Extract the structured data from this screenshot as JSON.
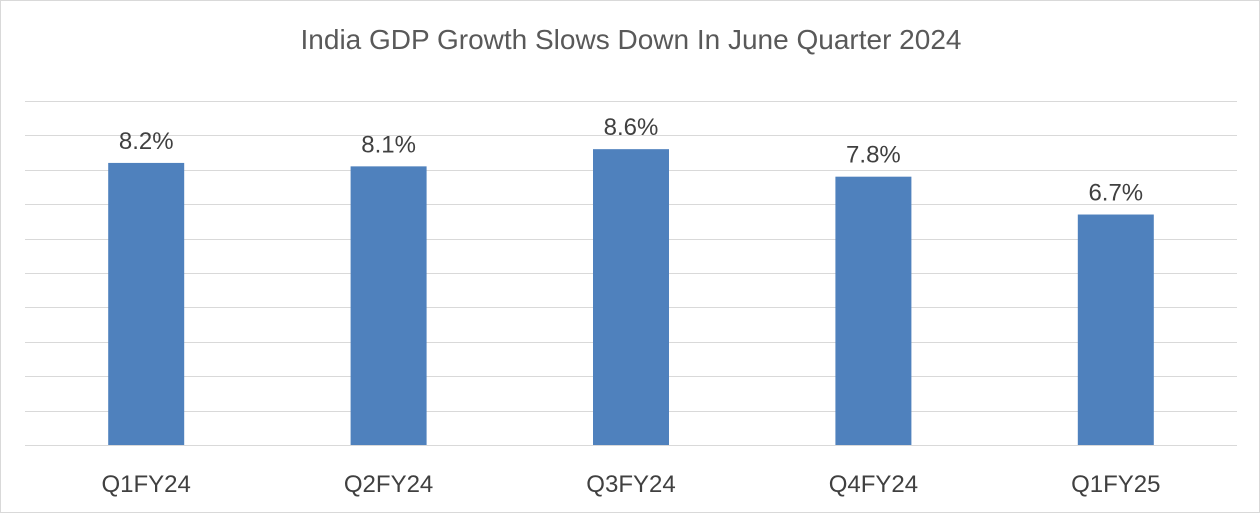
{
  "chart_data": {
    "type": "bar",
    "title": "India GDP Growth Slows Down In June Quarter 2024",
    "xlabel": "",
    "ylabel": "",
    "categories": [
      "Q1FY24",
      "Q2FY24",
      "Q3FY24",
      "Q4FY24",
      "Q1FY25"
    ],
    "values": [
      8.2,
      8.1,
      8.6,
      7.8,
      6.7
    ],
    "value_labels": [
      "8.2%",
      "8.1%",
      "8.6%",
      "7.8%",
      "6.7%"
    ],
    "ylim": [
      0,
      10
    ],
    "grid": true,
    "legend": "none",
    "bar_color": "#4f81bd"
  }
}
